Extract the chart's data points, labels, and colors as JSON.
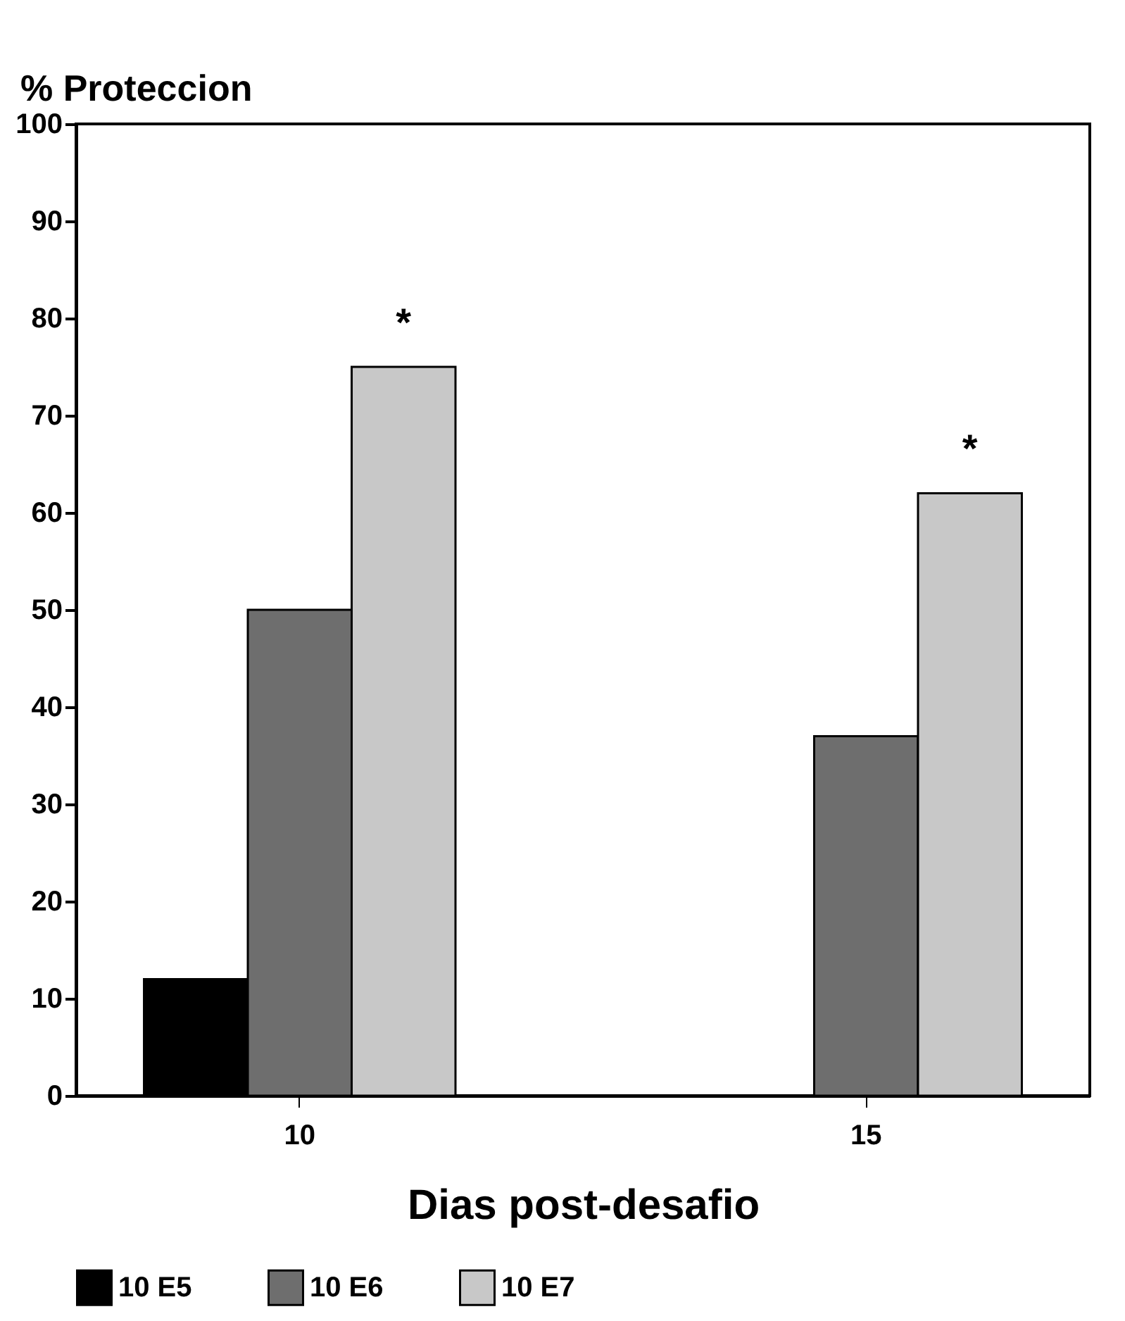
{
  "chart_data": {
    "type": "bar",
    "xlabel": "Dias post-desafio",
    "ylabel": "% Proteccion",
    "categories": [
      "10",
      "15"
    ],
    "series": [
      {
        "name": "10 E5",
        "color": "#000000",
        "values": [
          12,
          null
        ]
      },
      {
        "name": "10 E6",
        "color": "#6e6e6e",
        "values": [
          50,
          37
        ]
      },
      {
        "name": "10 E7",
        "color": "#c8c8c8",
        "values": [
          75,
          62
        ]
      }
    ],
    "annotations": [
      "*",
      "*"
    ],
    "ylim": [
      0,
      100
    ],
    "yticks": [
      0,
      10,
      20,
      30,
      40,
      50,
      60,
      70,
      80,
      90,
      100
    ],
    "grid": false,
    "legend": "bottom"
  }
}
